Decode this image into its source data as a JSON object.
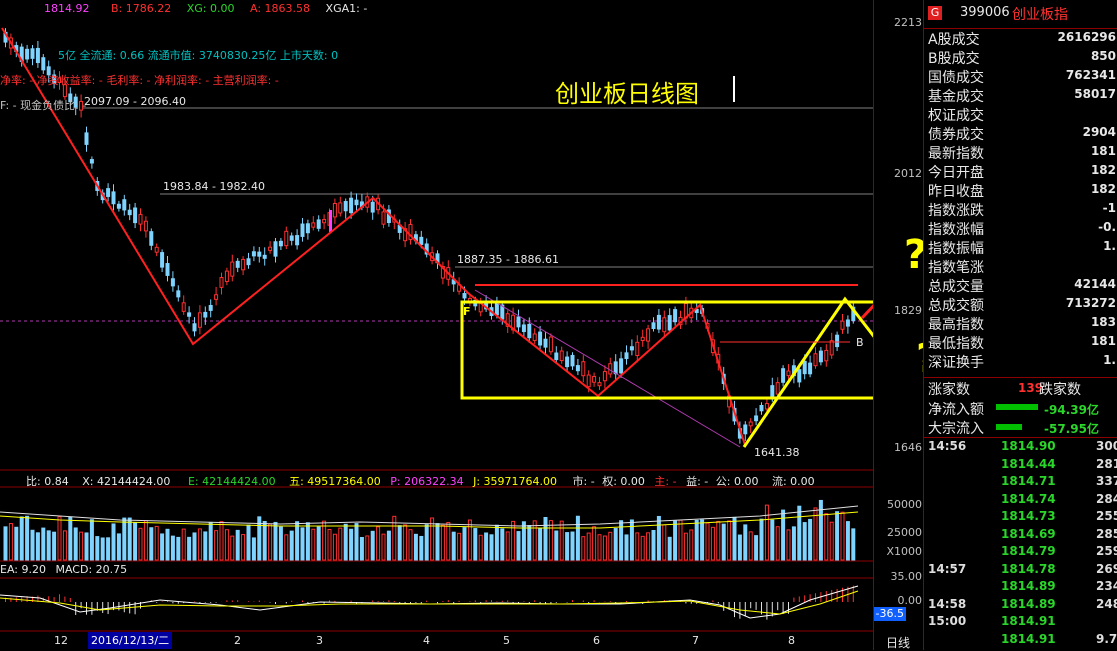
{
  "header": {
    "close": "1814.92",
    "b": "B: 1786.22",
    "xg": "XG: 0.00",
    "a": "A: 1863.58",
    "xga": "XGA1: -",
    "line2": "5亿 全流通: 0.66 流通市值: 3740830.25亿 上市天数: 0",
    "line3": "净率: - 净资收益率: - 毛利率: - 净利润率: - 主营利润率: -",
    "line4": "F: - 现金负债比: -"
  },
  "annotations": {
    "title": "创业板日线图",
    "level_2097": "2097.09 - 2096.40",
    "level_1983": "1983.84 - 1982.40",
    "level_1887": "1887.35 - 1886.61",
    "low_label": "1641.38",
    "question1": "?",
    "question2": "?",
    "marker_b": "B",
    "marker_f": "F"
  },
  "price_axis": {
    "labels": [
      "2213",
      "2012",
      "1829",
      "1646"
    ]
  },
  "volume_bar": {
    "bi": "比: 0.84",
    "x": "X: 42144424.00",
    "e": "E: 42144424.00",
    "five": "五: 49517364.00",
    "p": "P: 206322.34",
    "j": "J: 35971764.00",
    "shi": "市: -",
    "quan": "权: 0.00",
    "zhu": "主: -",
    "yi": "益: -",
    "gong": "公: 0.00",
    "liu": "流: 0.00",
    "axis": [
      "50000",
      "25000"
    ],
    "unit": "X1000"
  },
  "macd_bar": {
    "ema": "EA: 9.20",
    "macd": "MACD: 20.75",
    "axis": [
      "35.00",
      "0.00"
    ],
    "current": "-36.5"
  },
  "date_axis": {
    "labels": [
      "12",
      "2",
      "3",
      "4",
      "5",
      "6",
      "7",
      "8"
    ],
    "selected": "2016/12/13/二",
    "period": "日线"
  },
  "info_panel": {
    "code": "399006",
    "name": "创业板指",
    "logo": "G",
    "rows": [
      {
        "label": "A股成交",
        "value": "2616296",
        "color": "white"
      },
      {
        "label": "B股成交",
        "value": "850",
        "color": "white"
      },
      {
        "label": "国债成交",
        "value": "762341",
        "color": "white"
      },
      {
        "label": "基金成交",
        "value": "58017",
        "color": "white"
      },
      {
        "label": "权证成交",
        "value": "",
        "color": "white"
      },
      {
        "label": "债券成交",
        "value": "2904",
        "color": "white"
      },
      {
        "label": "最新指数",
        "value": "181",
        "color": "green"
      },
      {
        "label": "今日开盘",
        "value": "182",
        "color": "red"
      },
      {
        "label": "昨日收盘",
        "value": "182",
        "color": "white"
      },
      {
        "label": "指数涨跌",
        "value": "-1",
        "color": "green"
      },
      {
        "label": "指数涨幅",
        "value": "-0.",
        "color": "green"
      },
      {
        "label": "指数振幅",
        "value": "1.",
        "color": "white"
      },
      {
        "label": "指数笔涨",
        "value": "",
        "color": "white"
      },
      {
        "label": "总成交量",
        "value": "42144",
        "color": "white"
      },
      {
        "label": "总成交额",
        "value": "713272",
        "color": "white"
      },
      {
        "label": "最高指数",
        "value": "183",
        "color": "red"
      },
      {
        "label": "最低指数",
        "value": "181",
        "color": "green"
      },
      {
        "label": "深证换手",
        "value": "1.",
        "color": "white"
      }
    ],
    "updown": {
      "up_label": "涨家数",
      "up_value": "139",
      "down_label": "跌家数"
    },
    "net_in": {
      "label": "净流入额",
      "value": "-94.39亿"
    },
    "block_in": {
      "label": "大宗流入",
      "value": "-57.95亿"
    },
    "ticks": [
      {
        "time": "14:56",
        "price": "1814.90",
        "vol": "300"
      },
      {
        "time": "",
        "price": "1814.44",
        "vol": "281"
      },
      {
        "time": "",
        "price": "1814.71",
        "vol": "337"
      },
      {
        "time": "",
        "price": "1814.74",
        "vol": "284"
      },
      {
        "time": "",
        "price": "1814.73",
        "vol": "255"
      },
      {
        "time": "",
        "price": "1814.69",
        "vol": "285"
      },
      {
        "time": "",
        "price": "1814.79",
        "vol": "259"
      },
      {
        "time": "14:57",
        "price": "1814.78",
        "vol": "269"
      },
      {
        "time": "",
        "price": "1814.89",
        "vol": "234"
      },
      {
        "time": "14:58",
        "price": "1814.89",
        "vol": "248"
      },
      {
        "time": "15:00",
        "price": "1814.91",
        "vol": ""
      },
      {
        "time": "",
        "price": "1814.91",
        "vol": "9.7"
      }
    ]
  },
  "colors": {
    "up": "#ff3030",
    "down": "#7fd4ff",
    "annot": "#ffff00",
    "zigzag": "#ff2020"
  }
}
